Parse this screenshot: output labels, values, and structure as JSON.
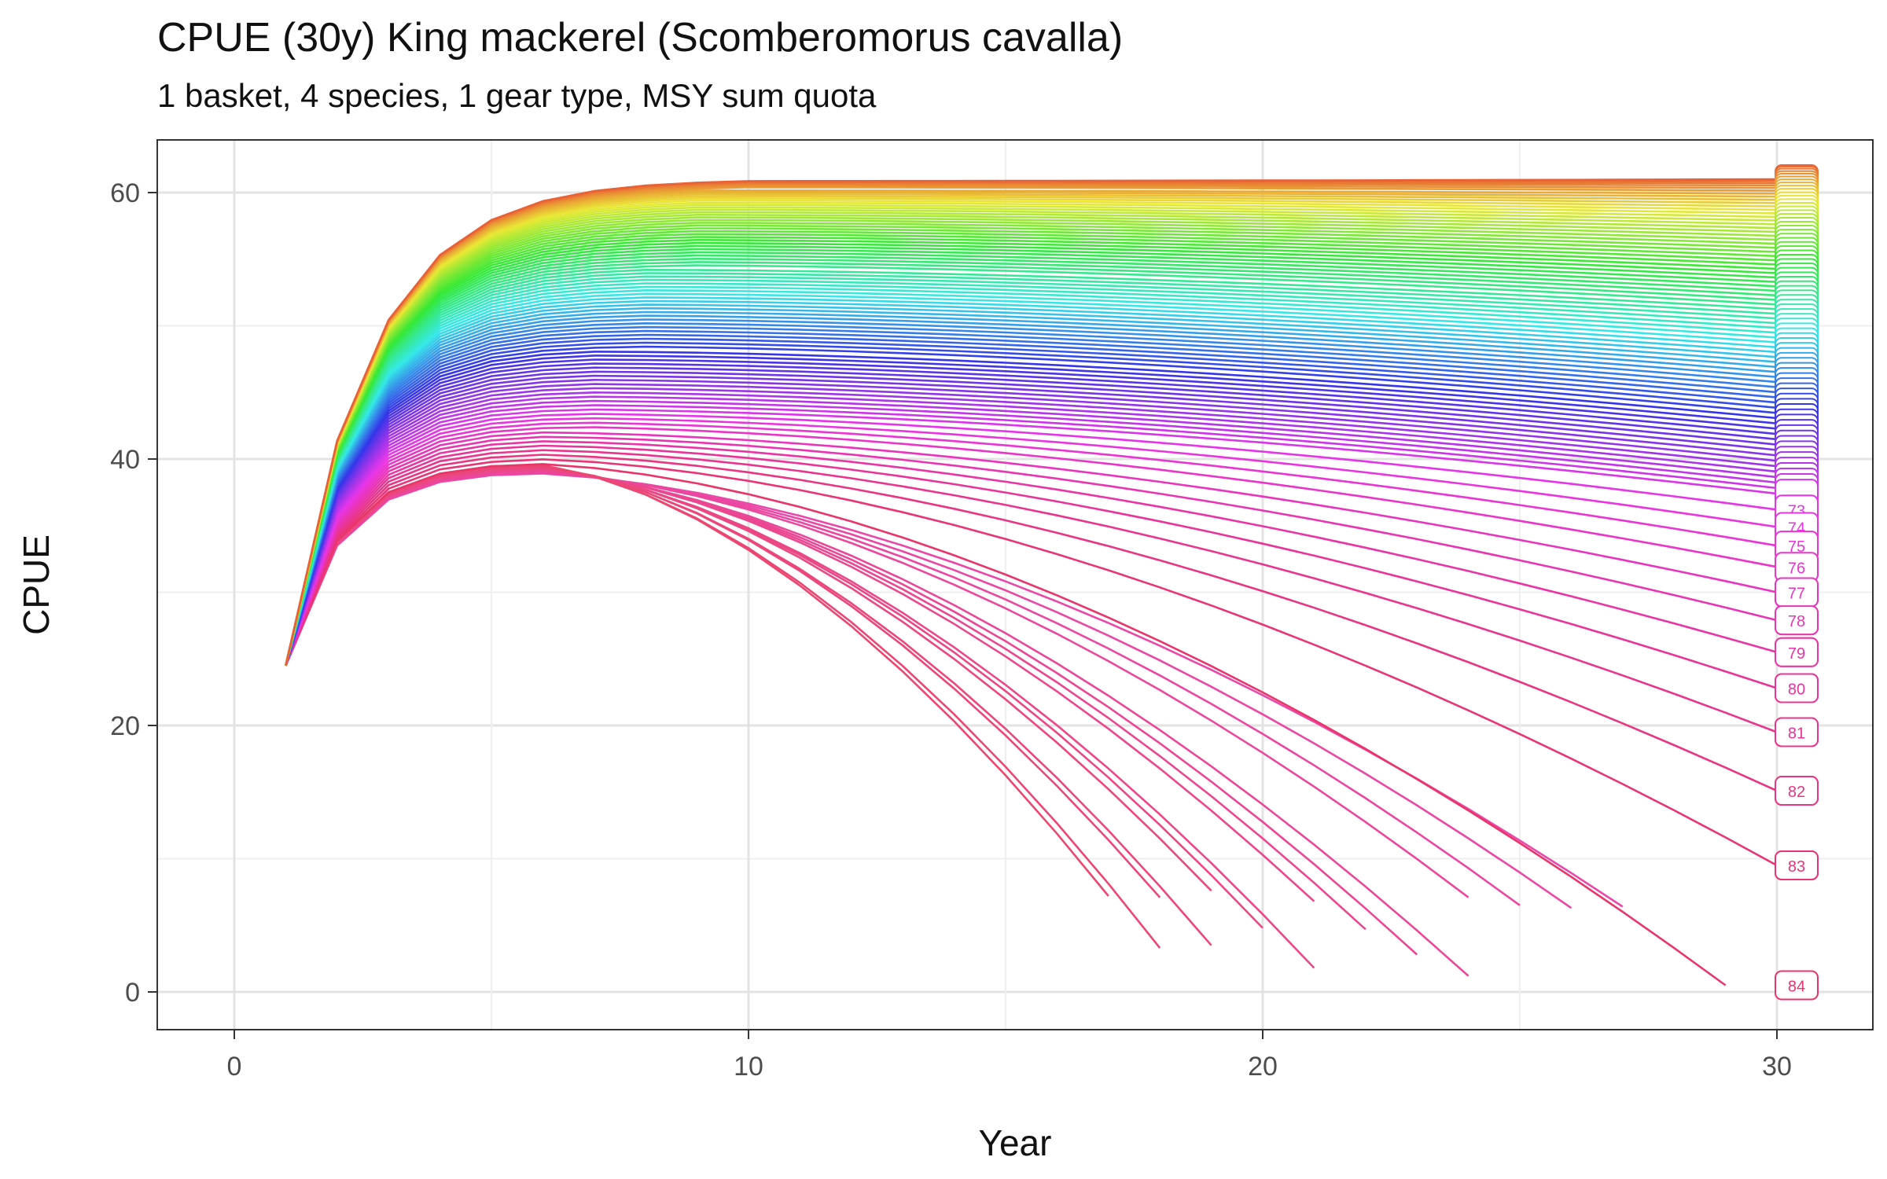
{
  "chart_data": {
    "type": "line",
    "title": "CPUE (30y) King mackerel (Scomberomorus cavalla)",
    "subtitle": "1 basket, 4 species, 1 gear type, MSY sum quota",
    "xlabel": "Year",
    "ylabel": "CPUE",
    "xlim": [
      -1.5,
      31.8
    ],
    "ylim": [
      -1.5,
      64
    ],
    "xticks": [
      0,
      10,
      20,
      30
    ],
    "yticks": [
      0,
      20,
      40,
      60
    ],
    "grid": true,
    "legend": "none",
    "series_count": 84,
    "end_labels": [
      "73",
      "74",
      "75",
      "76",
      "77",
      "78",
      "79",
      "80",
      "81",
      "82",
      "83",
      "84"
    ],
    "description_of_values": "Each series starts at CPUE 24.5 in year 1. Top series plateau near 61; bottom series peak near 40 around year 6 and then decline toward zero, ending between year 17 and year 30.",
    "series_endpoints": [
      {
        "label": "84",
        "end_year": 29,
        "end_cpue": 0.5
      },
      {
        "label": "83",
        "end_year": 30,
        "end_cpue": 9.5
      },
      {
        "label": "82",
        "end_year": 30,
        "end_cpue": 15.1
      },
      {
        "label": "81",
        "end_year": 30,
        "end_cpue": 19.5
      },
      {
        "label": "80",
        "end_year": 30,
        "end_cpue": 22.8
      },
      {
        "label": "79",
        "end_year": 30,
        "end_cpue": 25.5
      },
      {
        "label": "78",
        "end_year": 30,
        "end_cpue": 27.9
      },
      {
        "label": "77",
        "end_year": 30,
        "end_cpue": 30.0
      },
      {
        "label": "76",
        "end_year": 30,
        "end_cpue": 31.9
      },
      {
        "label": "75",
        "end_year": 30,
        "end_cpue": 33.5
      },
      {
        "label": "74",
        "end_year": 30,
        "end_cpue": 34.9
      },
      {
        "label": "73",
        "end_year": 30,
        "end_cpue": 36.2
      }
    ],
    "early_end_series": [
      {
        "end_year": 17,
        "end_cpue": 7.2
      },
      {
        "end_year": 18,
        "end_cpue": 3.3
      },
      {
        "end_year": 18,
        "end_cpue": 7.1
      },
      {
        "end_year": 19,
        "end_cpue": 3.5
      },
      {
        "end_year": 19,
        "end_cpue": 7.6
      },
      {
        "end_year": 20,
        "end_cpue": 4.8
      },
      {
        "end_year": 21,
        "end_cpue": 1.8
      },
      {
        "end_year": 21,
        "end_cpue": 6.8
      },
      {
        "end_year": 22,
        "end_cpue": 4.7
      },
      {
        "end_year": 23,
        "end_cpue": 2.8
      },
      {
        "end_year": 24,
        "end_cpue": 1.2
      },
      {
        "end_year": 24,
        "end_cpue": 7.1
      },
      {
        "end_year": 25,
        "end_cpue": 6.5
      },
      {
        "end_year": 26,
        "end_cpue": 6.3
      },
      {
        "end_year": 27,
        "end_cpue": 6.4
      }
    ],
    "top_plateau": 61
  }
}
